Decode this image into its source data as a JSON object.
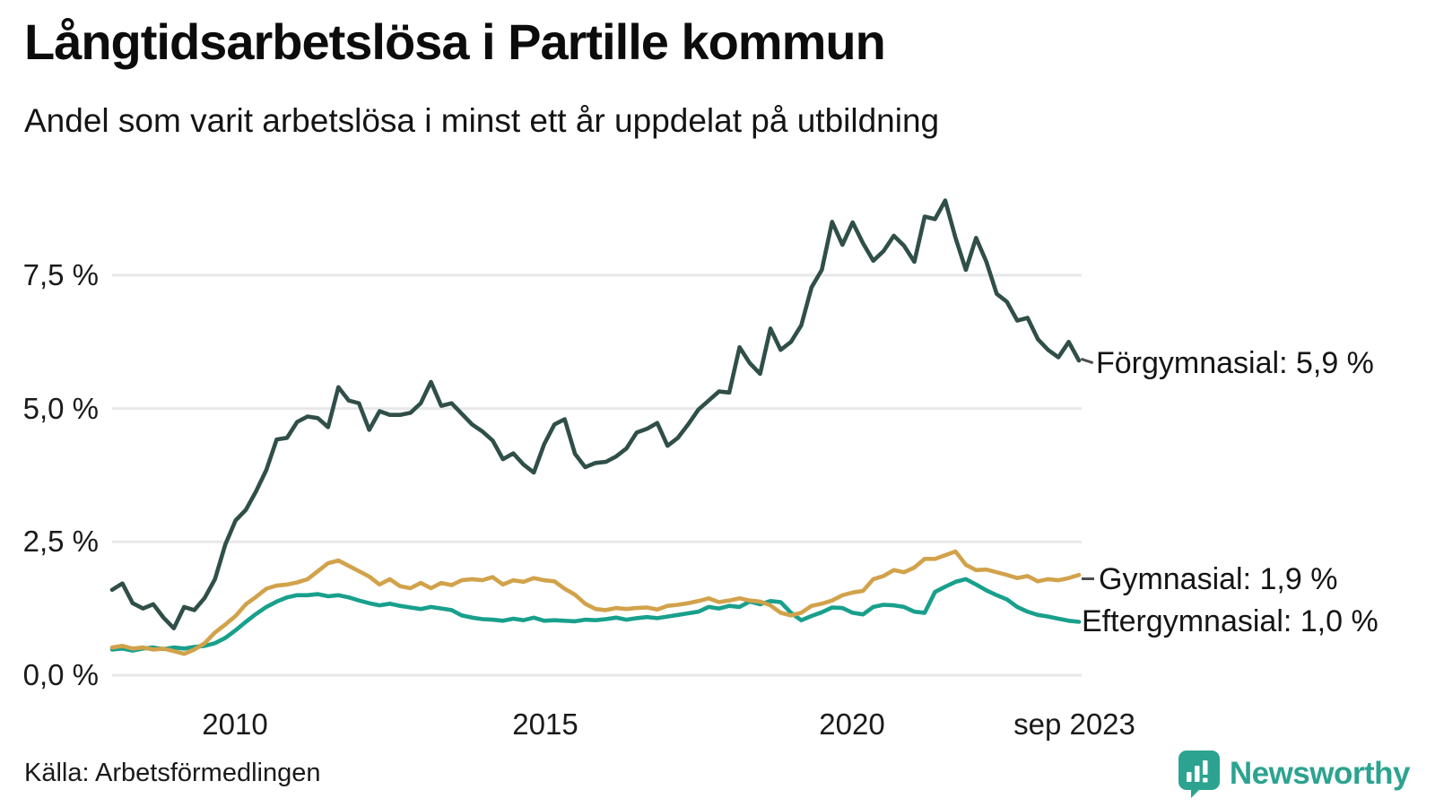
{
  "header": {
    "title": "Långtidsarbetslösa i Partille kommun",
    "subtitle": "Andel som varit arbetslösa i minst ett år uppdelat på utbildning"
  },
  "footer": {
    "source": "Källa: Arbetsförmedlingen",
    "brand": "Newsworthy",
    "brand_color": "#2ca390"
  },
  "chart_data": {
    "type": "line",
    "title": "Långtidsarbetslösa i Partille kommun",
    "subtitle": "Andel som varit arbetslösa i minst ett år uppdelat på utbildning",
    "unit": "%",
    "grid": true,
    "gridline_color": "#e8e8eb",
    "x_start": 2008.0,
    "x_step": 0.1666667,
    "x_axis": {
      "domain": [
        2008.0,
        2023.667
      ],
      "ticks": [
        {
          "value": 2010,
          "label": "2010"
        },
        {
          "value": 2015,
          "label": "2015"
        },
        {
          "value": 2020,
          "label": "2020"
        },
        {
          "value": 2023.667,
          "label": "sep 2023"
        }
      ]
    },
    "y_axis": {
      "domain": [
        0,
        9.3
      ],
      "ticks": [
        {
          "value": 0.0,
          "label": "0,0 %"
        },
        {
          "value": 2.5,
          "label": "2,5 %"
        },
        {
          "value": 5.0,
          "label": "5,0 %"
        },
        {
          "value": 7.5,
          "label": "7,5 %"
        }
      ]
    },
    "series": [
      {
        "name": "Förgymnasial",
        "color": "#2f4f48",
        "end_value": 5.9,
        "end_label": "Förgymnasial: 5,9 %",
        "values": [
          1.6,
          1.72,
          1.35,
          1.25,
          1.33,
          1.08,
          0.88,
          1.28,
          1.22,
          1.45,
          1.8,
          2.45,
          2.9,
          3.1,
          3.45,
          3.85,
          4.42,
          4.45,
          4.75,
          4.85,
          4.82,
          4.65,
          5.4,
          5.15,
          5.1,
          4.6,
          4.95,
          4.88,
          4.88,
          4.92,
          5.1,
          5.5,
          5.05,
          5.1,
          4.9,
          4.7,
          4.57,
          4.4,
          4.05,
          4.16,
          3.95,
          3.8,
          4.33,
          4.7,
          4.8,
          4.15,
          3.9,
          3.98,
          4.0,
          4.1,
          4.25,
          4.55,
          4.62,
          4.73,
          4.3,
          4.45,
          4.7,
          4.98,
          5.15,
          5.32,
          5.3,
          6.15,
          5.85,
          5.65,
          6.5,
          6.1,
          6.25,
          6.56,
          7.27,
          7.6,
          8.5,
          8.07,
          8.49,
          8.1,
          7.77,
          7.95,
          8.24,
          8.05,
          7.75,
          8.6,
          8.55,
          8.9,
          8.2,
          7.6,
          8.2,
          7.75,
          7.15,
          7.0,
          6.65,
          6.7,
          6.3,
          6.1,
          5.96,
          6.25,
          5.9
        ]
      },
      {
        "name": "Gymnasial",
        "color": "#d2a24b",
        "end_value": 1.9,
        "end_label": "Gymnasial: 1,9 %",
        "values": [
          0.52,
          0.55,
          0.5,
          0.52,
          0.48,
          0.5,
          0.45,
          0.4,
          0.48,
          0.6,
          0.8,
          0.95,
          1.11,
          1.33,
          1.47,
          1.62,
          1.68,
          1.7,
          1.74,
          1.8,
          1.95,
          2.1,
          2.15,
          2.05,
          1.95,
          1.85,
          1.7,
          1.8,
          1.67,
          1.63,
          1.73,
          1.63,
          1.73,
          1.69,
          1.78,
          1.8,
          1.78,
          1.84,
          1.7,
          1.78,
          1.75,
          1.82,
          1.78,
          1.76,
          1.62,
          1.51,
          1.34,
          1.24,
          1.22,
          1.26,
          1.24,
          1.26,
          1.27,
          1.23,
          1.3,
          1.32,
          1.35,
          1.39,
          1.44,
          1.37,
          1.4,
          1.44,
          1.4,
          1.38,
          1.31,
          1.17,
          1.12,
          1.17,
          1.3,
          1.34,
          1.4,
          1.5,
          1.55,
          1.58,
          1.8,
          1.86,
          1.97,
          1.93,
          2.02,
          2.18,
          2.18,
          2.25,
          2.32,
          2.07,
          1.97,
          1.98,
          1.93,
          1.88,
          1.82,
          1.86,
          1.76,
          1.8,
          1.78,
          1.82,
          1.88
        ]
      },
      {
        "name": "Eftergymnasial",
        "color": "#18a08c",
        "end_value": 1.0,
        "end_label": "Eftergymnasial: 1,0 %",
        "values": [
          0.48,
          0.5,
          0.46,
          0.5,
          0.52,
          0.49,
          0.52,
          0.5,
          0.53,
          0.55,
          0.6,
          0.7,
          0.84,
          1.0,
          1.15,
          1.28,
          1.38,
          1.46,
          1.5,
          1.5,
          1.52,
          1.48,
          1.5,
          1.46,
          1.4,
          1.35,
          1.31,
          1.34,
          1.3,
          1.27,
          1.24,
          1.28,
          1.25,
          1.22,
          1.12,
          1.08,
          1.05,
          1.04,
          1.02,
          1.06,
          1.03,
          1.08,
          1.02,
          1.03,
          1.02,
          1.01,
          1.04,
          1.03,
          1.05,
          1.08,
          1.04,
          1.07,
          1.09,
          1.07,
          1.1,
          1.13,
          1.16,
          1.19,
          1.28,
          1.25,
          1.3,
          1.28,
          1.38,
          1.33,
          1.39,
          1.37,
          1.17,
          1.03,
          1.11,
          1.18,
          1.27,
          1.26,
          1.17,
          1.14,
          1.28,
          1.32,
          1.31,
          1.28,
          1.19,
          1.17,
          1.56,
          1.66,
          1.75,
          1.8,
          1.7,
          1.59,
          1.5,
          1.42,
          1.28,
          1.19,
          1.13,
          1.1,
          1.06,
          1.02,
          1.0
        ]
      }
    ]
  }
}
